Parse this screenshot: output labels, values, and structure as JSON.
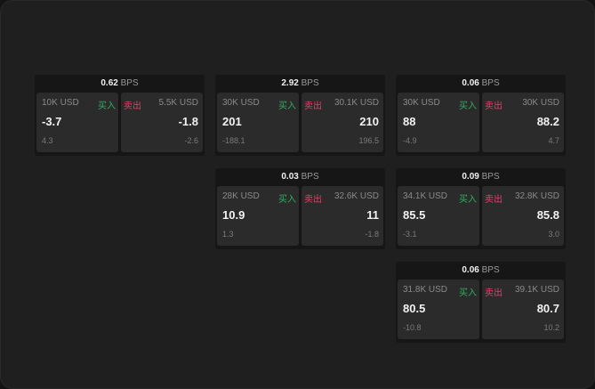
{
  "unit": "BPS",
  "buy_label": "买入",
  "sell_label": "卖出",
  "colors": {
    "buy": "#2fae60",
    "sell": "#e0406a",
    "background": "#1f1f1f"
  },
  "cards": [
    {
      "spread": "0.62",
      "buy": {
        "qty": "10K USD",
        "price": "-3.7",
        "change": "4.3"
      },
      "sell": {
        "qty": "5.5K USD",
        "price": "-1.8",
        "change": "-2.6"
      }
    },
    {
      "spread": "2.92",
      "buy": {
        "qty": "30K USD",
        "price": "201",
        "change": "-188.1"
      },
      "sell": {
        "qty": "30.1K USD",
        "price": "210",
        "change": "196.5"
      }
    },
    {
      "spread": "0.06",
      "buy": {
        "qty": "30K USD",
        "price": "88",
        "change": "-4.9"
      },
      "sell": {
        "qty": "30K USD",
        "price": "88.2",
        "change": "4.7"
      }
    },
    {
      "spread": "0.03",
      "buy": {
        "qty": "28K USD",
        "price": "10.9",
        "change": "1.3"
      },
      "sell": {
        "qty": "32.6K USD",
        "price": "11",
        "change": "-1.8"
      }
    },
    {
      "spread": "0.09",
      "buy": {
        "qty": "34.1K USD",
        "price": "85.5",
        "change": "-3.1"
      },
      "sell": {
        "qty": "32.8K USD",
        "price": "85.8",
        "change": "3.0"
      }
    },
    {
      "spread": "0.06",
      "buy": {
        "qty": "31.8K USD",
        "price": "80.5",
        "change": "-10.8"
      },
      "sell": {
        "qty": "39.1K USD",
        "price": "80.7",
        "change": "10.2"
      }
    }
  ]
}
